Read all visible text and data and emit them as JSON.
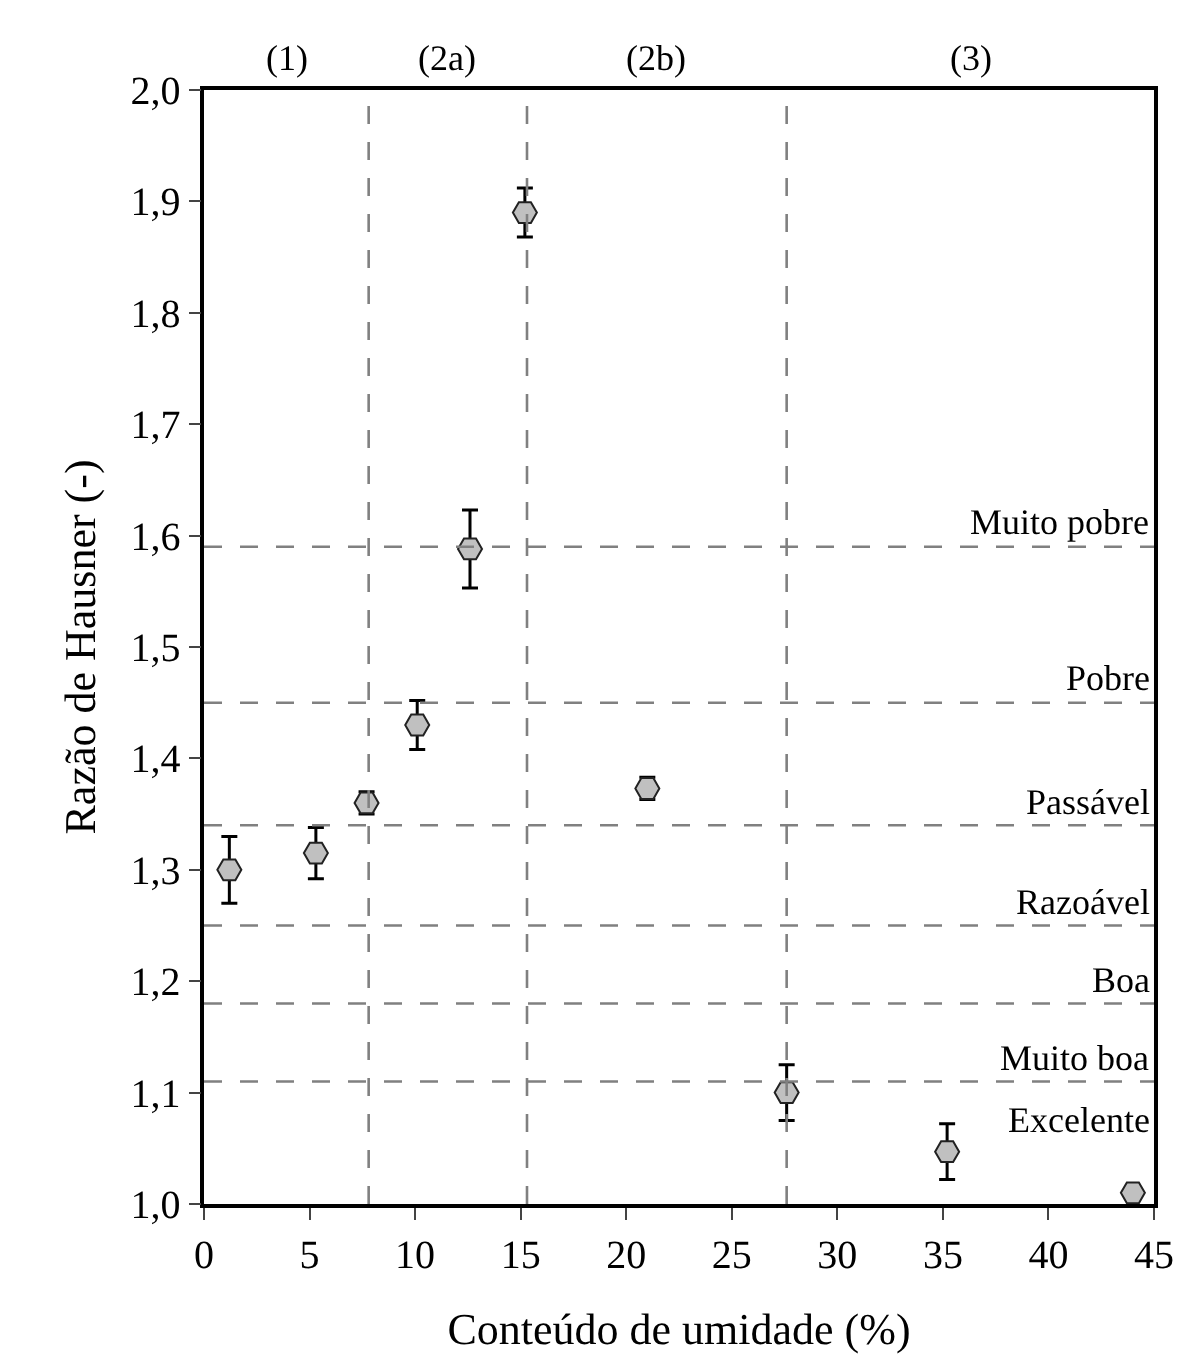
{
  "chart_data": {
    "type": "scatter",
    "xlabel": "Conteúdo de umidade (%)",
    "ylabel": "Razão de Hausner (-)",
    "x": [
      1.2,
      5.3,
      7.7,
      10.1,
      12.6,
      15.2,
      21.0,
      27.6,
      35.2,
      44.0
    ],
    "values": [
      1.3,
      1.315,
      1.36,
      1.43,
      1.588,
      1.89,
      1.373,
      1.1,
      1.047,
      1.01
    ],
    "errors": [
      0.03,
      0.023,
      0.01,
      0.022,
      0.035,
      0.022,
      0.01,
      0.025,
      0.025,
      null
    ],
    "color": "#c0c0c0",
    "grid": false,
    "legend": false,
    "xlim": [
      0,
      45
    ],
    "xticks": [
      0,
      5,
      10,
      15,
      20,
      25,
      30,
      35,
      40,
      45
    ],
    "ylim": [
      1.0,
      2.0
    ],
    "yticks": [
      {
        "value": 1.0,
        "label": "1,0"
      },
      {
        "value": 1.1,
        "label": "1,1"
      },
      {
        "value": 1.2,
        "label": "1,2"
      },
      {
        "value": 1.3,
        "label": "1,3"
      },
      {
        "value": 1.4,
        "label": "1,4"
      },
      {
        "value": 1.5,
        "label": "1,5"
      },
      {
        "value": 1.6,
        "label": "1,6"
      },
      {
        "value": 1.7,
        "label": "1,7"
      },
      {
        "value": 1.8,
        "label": "1,8"
      },
      {
        "value": 1.9,
        "label": "1,9"
      },
      {
        "value": 2.0,
        "label": "2,0"
      }
    ],
    "ref_lines": [
      {
        "axis": "y",
        "value": 1.59,
        "label": "Muito pobre",
        "color": "#808080",
        "line_style": "dashed"
      },
      {
        "axis": "y",
        "value": 1.45,
        "label": "Pobre",
        "color": "#808080",
        "line_style": "dashed"
      },
      {
        "axis": "y",
        "value": 1.34,
        "label": "Passável",
        "color": "#808080",
        "line_style": "dashed"
      },
      {
        "axis": "y",
        "value": 1.25,
        "label": "Razoável",
        "color": "#808080",
        "line_style": "dashed"
      },
      {
        "axis": "y",
        "value": 1.18,
        "label": "Boa",
        "color": "#808080",
        "line_style": "dashed"
      },
      {
        "axis": "y",
        "value": 1.11,
        "label": "Muito boa",
        "color": "#808080",
        "line_style": "dashed"
      },
      {
        "axis": "x",
        "value": 7.8,
        "color": "#808080",
        "line_style": "dashed"
      },
      {
        "axis": "x",
        "value": 15.3,
        "color": "#808080",
        "line_style": "dashed"
      },
      {
        "axis": "x",
        "value": 27.6,
        "color": "#808080",
        "line_style": "dashed"
      }
    ],
    "annotations": [
      "(1)",
      "(2a)",
      "(2b)",
      "(3)",
      "Excelente"
    ]
  }
}
